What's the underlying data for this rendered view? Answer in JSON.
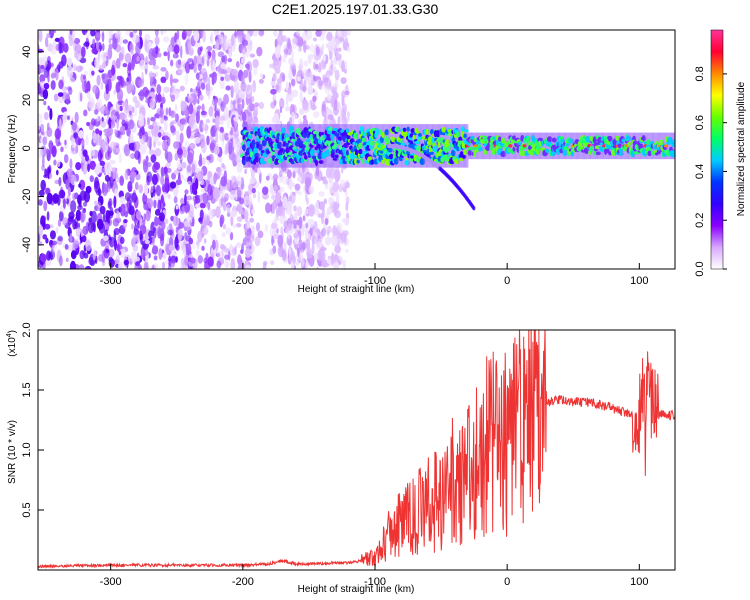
{
  "title": "C2E1.2025.197.01.33.G30",
  "chart_data": [
    {
      "type": "heatmap",
      "xlabel": "Height of straight line (km)",
      "ylabel": "Frequency (Hz)",
      "xlim": [
        -355,
        127
      ],
      "ylim": [
        -50,
        49
      ],
      "xticks": [
        -300,
        -200,
        -100,
        0,
        100
      ],
      "yticks": [
        -40,
        -20,
        0,
        20,
        40
      ],
      "colorbar": {
        "label": "Normalized spectral amplitude",
        "range": [
          0,
          0.98
        ],
        "ticks": [
          "0.0",
          "0.2",
          "0.4",
          "0.6",
          "0.8"
        ],
        "colors": [
          "#ffffff",
          "#d8a8ff",
          "#8800ff",
          "#3300ff",
          "#0033ff",
          "#00ccff",
          "#00ff66",
          "#66ff00",
          "#ffff00",
          "#ff8800",
          "#ff0033",
          "#ff3399"
        ]
      },
      "features": {
        "noise_region_x": [
          -355,
          -120
        ],
        "gap_x": [
          -190,
          -178
        ],
        "band_start_x": -200,
        "band_center_hz": 1,
        "chirp_x": [
          -90,
          -25
        ],
        "chirp_end_hz": -25
      }
    },
    {
      "type": "line",
      "xlabel": "Height of straight line (km)",
      "ylabel": "SNR (10 * v/v)",
      "y_multiplier": "(x10",
      "y_multiplier_exp": "4",
      "xlim": [
        -355,
        127
      ],
      "ylim": [
        0,
        2.0
      ],
      "xticks": [
        -300,
        -200,
        -100,
        0,
        100
      ],
      "yticks": [
        "0.5",
        "1.0",
        "1.5",
        "2.0"
      ],
      "color": "#ee3333",
      "series": [
        {
          "x": [
            -355,
            -300,
            -250,
            -200,
            -180,
            -170,
            -160,
            -150,
            -120,
            -100,
            -90,
            -80,
            -70,
            -60,
            -50,
            -40,
            -30,
            -20,
            -10,
            -5,
            0,
            10,
            20,
            30,
            40,
            50,
            60,
            70,
            80,
            90,
            100,
            103,
            105,
            110,
            115,
            120,
            127
          ],
          "y": [
            0.03,
            0.04,
            0.04,
            0.04,
            0.05,
            0.08,
            0.05,
            0.05,
            0.06,
            0.1,
            0.3,
            0.4,
            0.45,
            0.55,
            0.6,
            0.75,
            0.8,
            0.95,
            1.1,
            1.0,
            1.05,
            1.25,
            1.35,
            1.4,
            1.42,
            1.4,
            1.4,
            1.38,
            1.35,
            1.3,
            1.3,
            1.5,
            1.55,
            1.4,
            1.3,
            1.3,
            1.28
          ]
        }
      ]
    }
  ]
}
